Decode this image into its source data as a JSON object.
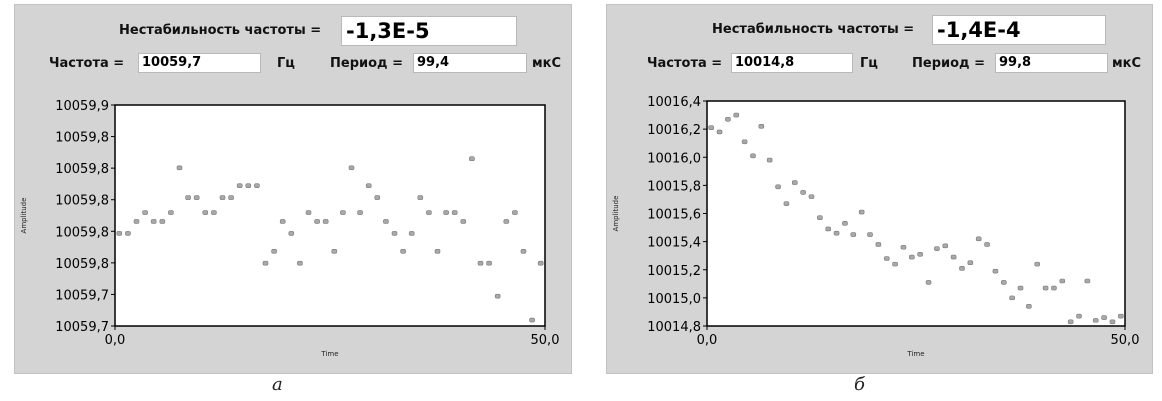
{
  "panels": [
    {
      "instability_label": "Нестабильность частоты =",
      "instability_value": "-1,3E-5",
      "freq_label": "Частота =",
      "freq_value": "10059,7",
      "freq_unit": "Гц",
      "period_label": "Период =",
      "period_value": "99,4",
      "period_unit": "мкС",
      "caption": "а"
    },
    {
      "instability_label": "Нестабильность частоты =",
      "instability_value": "-1,4E-4",
      "freq_label": "Частота =",
      "freq_value": "10014,8",
      "freq_unit": "Гц",
      "period_label": "Период =",
      "period_value": "99,8",
      "period_unit": "мкС",
      "caption": "б"
    }
  ],
  "chart_data": [
    {
      "type": "scatter",
      "xlabel": "Time",
      "ylabel": "Amplitude",
      "xlim": [
        0,
        50
      ],
      "ylim": [
        10059.7,
        10059.9
      ],
      "xticks": [
        "0,0",
        "50,0"
      ],
      "yticks": [
        "10059,7",
        "10059,7",
        "10059,8",
        "10059,8",
        "10059,8",
        "10059,8",
        "10059,8",
        "10059,9"
      ],
      "marker_color": "#a8a8a8",
      "x": [
        0,
        1,
        2,
        3,
        4,
        5,
        6,
        7,
        8,
        9,
        10,
        11,
        12,
        13,
        14,
        15,
        16,
        17,
        18,
        19,
        20,
        21,
        22,
        23,
        24,
        25,
        26,
        27,
        28,
        29,
        30,
        31,
        32,
        33,
        34,
        35,
        36,
        37,
        38,
        39,
        40,
        41,
        42,
        43,
        44,
        45,
        46,
        47,
        48,
        49
      ],
      "y": [
        10059.7838,
        10059.7838,
        10059.7946,
        10059.8027,
        10059.7946,
        10059.7946,
        10059.8027,
        10059.8432,
        10059.8162,
        10059.8162,
        10059.8027,
        10059.8027,
        10059.8162,
        10059.8162,
        10059.827,
        10059.827,
        10059.827,
        10059.7568,
        10059.7676,
        10059.7946,
        10059.7838,
        10059.7568,
        10059.8027,
        10059.7946,
        10059.7946,
        10059.7676,
        10059.8027,
        10059.8432,
        10059.8027,
        10059.827,
        10059.8162,
        10059.7946,
        10059.7838,
        10059.7676,
        10059.7838,
        10059.8162,
        10059.8027,
        10059.7676,
        10059.8027,
        10059.8027,
        10059.7946,
        10059.8514,
        10059.7568,
        10059.7568,
        10059.727,
        10059.7946,
        10059.8027,
        10059.7676,
        10059.7054,
        10059.7568
      ]
    },
    {
      "type": "scatter",
      "xlabel": "Time",
      "ylabel": "Amplitude",
      "xlim": [
        0,
        50
      ],
      "ylim": [
        10014.8,
        10016.4
      ],
      "xticks": [
        "0,0",
        "50,0"
      ],
      "yticks": [
        "10014,8",
        "10015,0",
        "10015,2",
        "10015,4",
        "10015,6",
        "10015,8",
        "10016,0",
        "10016,2",
        "10016,4"
      ],
      "marker_color": "#a8a8a8",
      "x": [
        0,
        1,
        2,
        3,
        4,
        5,
        6,
        7,
        8,
        9,
        10,
        11,
        12,
        13,
        14,
        15,
        16,
        17,
        18,
        19,
        20,
        21,
        22,
        23,
        24,
        25,
        26,
        27,
        28,
        29,
        30,
        31,
        32,
        33,
        34,
        35,
        36,
        37,
        38,
        39,
        40,
        41,
        42,
        43,
        44,
        45,
        46,
        47,
        48,
        49
      ],
      "y": [
        10016.21,
        10016.18,
        10016.27,
        10016.3,
        10016.11,
        10016.01,
        10016.22,
        10015.98,
        10015.79,
        10015.67,
        10015.82,
        10015.75,
        10015.72,
        10015.57,
        10015.49,
        10015.46,
        10015.53,
        10015.45,
        10015.61,
        10015.45,
        10015.38,
        10015.28,
        10015.24,
        10015.36,
        10015.29,
        10015.31,
        10015.11,
        10015.35,
        10015.37,
        10015.29,
        10015.21,
        10015.25,
        10015.42,
        10015.38,
        10015.19,
        10015.11,
        10015.0,
        10015.07,
        10014.94,
        10015.24,
        10015.07,
        10015.07,
        10015.12,
        10014.83,
        10014.87,
        10015.12,
        10014.84,
        10014.86,
        10014.83,
        10014.87
      ]
    }
  ]
}
